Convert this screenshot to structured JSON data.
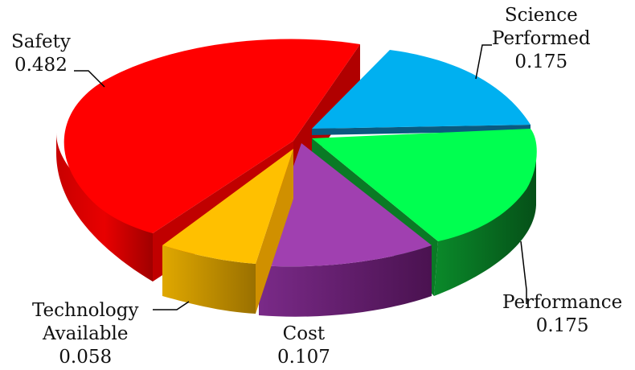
{
  "chart_data": {
    "type": "pie",
    "style": "3d-exploded",
    "title": "",
    "slices": [
      {
        "label": "Safety",
        "value": 0.482,
        "value_text": "0.482",
        "color": "#ff0000"
      },
      {
        "label": "Science Performed",
        "label_lines": [
          "Science",
          "Performed"
        ],
        "value": 0.175,
        "value_text": "0.175",
        "color": "#00b0f0"
      },
      {
        "label": "Performance",
        "value": 0.175,
        "value_text": "0.175",
        "color": "#00ff50"
      },
      {
        "label": "Cost",
        "value": 0.107,
        "value_text": "0.107",
        "color": "#a040b0"
      },
      {
        "label": "Technology Available",
        "label_lines": [
          "Technology",
          "Available"
        ],
        "value": 0.058,
        "value_text": "0.058",
        "color": "#ffc000"
      }
    ]
  }
}
